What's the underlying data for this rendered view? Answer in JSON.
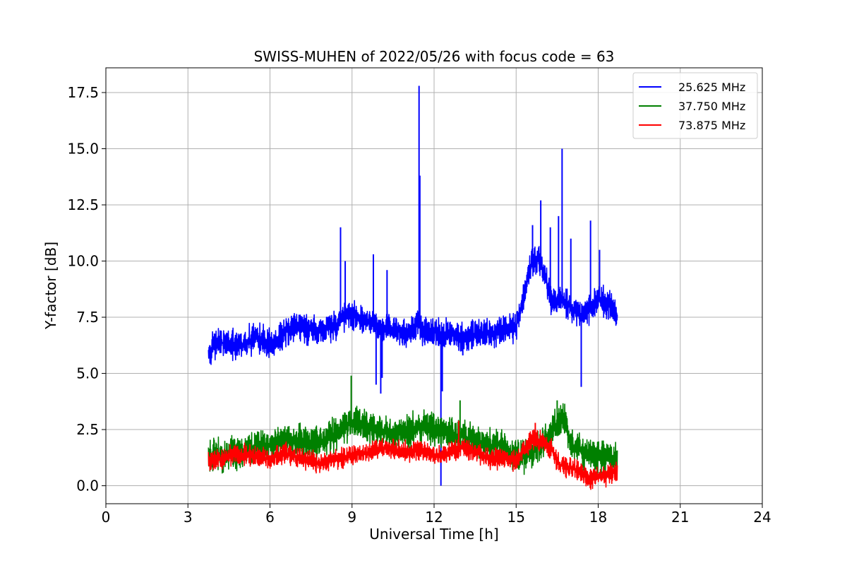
{
  "chart_data": {
    "type": "line",
    "title": "SWISS-MUHEN of 2022/05/26 with focus code = 63",
    "xlabel": "Universal Time [h]",
    "ylabel": "Y-factor [dB]",
    "xlim": [
      0,
      24
    ],
    "ylim": [
      -0.8,
      18.6
    ],
    "xticks": [
      0,
      3,
      6,
      9,
      12,
      15,
      18,
      21,
      24
    ],
    "xtick_labels": [
      "0",
      "3",
      "6",
      "9",
      "12",
      "15",
      "18",
      "21",
      "24"
    ],
    "yticks": [
      0,
      2.5,
      5,
      7.5,
      10,
      12.5,
      15,
      17.5
    ],
    "ytick_labels": [
      "0.0",
      "2.5",
      "5.0",
      "7.5",
      "10.0",
      "12.5",
      "15.0",
      "17.5"
    ],
    "grid": true,
    "legend_position": "top-right",
    "series": [
      {
        "name": "25.625 MHz",
        "color": "#0000ff",
        "x": [
          3.75,
          4.0,
          4.5,
          5.0,
          5.5,
          6.0,
          6.5,
          7.0,
          7.5,
          8.0,
          8.5,
          8.6,
          9.0,
          9.3,
          9.5,
          9.8,
          10.0,
          10.3,
          10.5,
          11.0,
          11.45,
          11.5,
          12.0,
          12.25,
          12.5,
          13.0,
          13.5,
          14.0,
          14.5,
          15.0,
          15.3,
          15.6,
          15.8,
          16.0,
          16.3,
          16.7,
          17.0,
          17.4,
          17.7,
          18.0,
          18.2,
          18.5,
          18.7
        ],
        "y": [
          5.9,
          6.4,
          6.3,
          6.2,
          6.7,
          6.2,
          6.8,
          7.1,
          6.9,
          7.0,
          7.2,
          7.6,
          7.6,
          7.4,
          7.3,
          7.3,
          6.9,
          7.1,
          7.0,
          6.7,
          7.3,
          6.9,
          6.9,
          6.7,
          6.8,
          6.6,
          6.7,
          6.8,
          6.9,
          7.1,
          8.5,
          10.1,
          10.2,
          9.6,
          8.2,
          8.3,
          7.9,
          7.6,
          7.9,
          8.4,
          8.2,
          7.9,
          7.4
        ],
        "noise": 0.8,
        "spikes": [
          {
            "x": 8.58,
            "y": 11.5
          },
          {
            "x": 8.75,
            "y": 10.0
          },
          {
            "x": 9.78,
            "y": 10.3
          },
          {
            "x": 9.88,
            "y": 4.5
          },
          {
            "x": 10.05,
            "y": 4.1
          },
          {
            "x": 10.1,
            "y": 4.8
          },
          {
            "x": 10.28,
            "y": 9.6
          },
          {
            "x": 11.45,
            "y": 17.8
          },
          {
            "x": 11.48,
            "y": 13.8
          },
          {
            "x": 12.25,
            "y": 0.0
          },
          {
            "x": 12.3,
            "y": 4.2
          },
          {
            "x": 13.05,
            "y": 5.8
          },
          {
            "x": 15.6,
            "y": 11.6
          },
          {
            "x": 15.9,
            "y": 12.7
          },
          {
            "x": 16.25,
            "y": 11.5
          },
          {
            "x": 16.55,
            "y": 12.0
          },
          {
            "x": 16.68,
            "y": 15.0
          },
          {
            "x": 17.0,
            "y": 11.0
          },
          {
            "x": 17.38,
            "y": 4.4
          },
          {
            "x": 17.72,
            "y": 11.8
          },
          {
            "x": 18.05,
            "y": 10.5
          }
        ]
      },
      {
        "name": "37.750 MHz",
        "color": "#008000",
        "x": [
          3.75,
          4.5,
          5.0,
          5.5,
          6.0,
          6.5,
          7.0,
          7.5,
          8.0,
          8.5,
          9.0,
          9.5,
          10.0,
          10.5,
          11.0,
          11.5,
          12.0,
          12.5,
          13.0,
          13.5,
          14.0,
          14.5,
          15.0,
          15.5,
          16.0,
          16.5,
          16.8,
          17.0,
          17.5,
          18.0,
          18.7
        ],
        "y": [
          1.3,
          1.4,
          1.5,
          1.7,
          1.8,
          2.0,
          2.0,
          1.9,
          2.0,
          2.5,
          2.8,
          2.6,
          2.4,
          2.3,
          2.4,
          2.6,
          2.5,
          2.4,
          2.2,
          2.0,
          1.8,
          1.8,
          1.3,
          1.4,
          1.9,
          2.8,
          2.9,
          1.8,
          1.5,
          1.3,
          1.2
        ],
        "noise": 0.9,
        "spikes": [
          {
            "x": 8.97,
            "y": 4.9
          },
          {
            "x": 12.95,
            "y": 3.8
          },
          {
            "x": 16.5,
            "y": 3.8
          }
        ]
      },
      {
        "name": "73.875 MHz",
        "color": "#ff0000",
        "x": [
          3.75,
          4.5,
          5.0,
          5.5,
          6.0,
          6.5,
          7.0,
          7.5,
          8.0,
          8.5,
          9.0,
          9.5,
          10.0,
          10.5,
          11.0,
          11.5,
          12.0,
          12.5,
          13.0,
          13.5,
          14.0,
          14.5,
          15.0,
          15.3,
          15.6,
          16.0,
          16.3,
          16.6,
          17.0,
          17.4,
          17.6,
          18.0,
          18.7
        ],
        "y": [
          1.1,
          1.3,
          1.4,
          1.3,
          1.2,
          1.5,
          1.3,
          1.1,
          1.0,
          1.2,
          1.4,
          1.4,
          1.7,
          1.6,
          1.5,
          1.6,
          1.4,
          1.4,
          1.7,
          1.5,
          1.2,
          1.2,
          1.1,
          1.6,
          2.1,
          1.9,
          1.6,
          0.9,
          0.8,
          0.6,
          0.3,
          0.4,
          0.6
        ],
        "noise": 0.55,
        "spikes": [
          {
            "x": 12.9,
            "y": 2.9
          },
          {
            "x": 15.7,
            "y": 2.8
          }
        ]
      }
    ]
  }
}
